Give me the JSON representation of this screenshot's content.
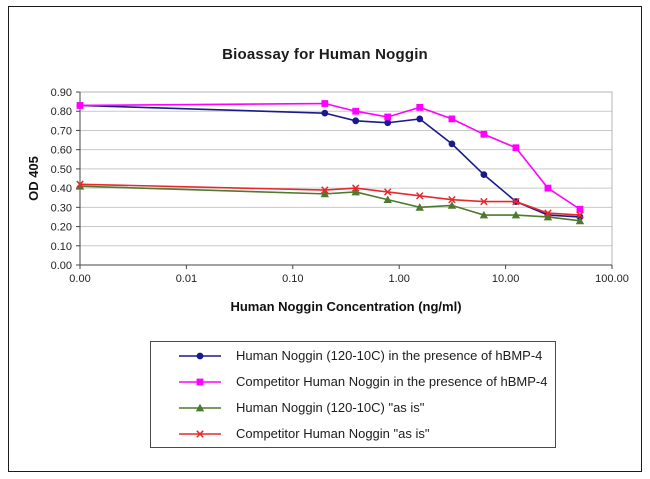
{
  "chart_data": {
    "type": "line",
    "title": "Bioassay for Human Noggin",
    "xlabel": "Human Noggin Concentration (ng/ml)",
    "ylabel": "OD 405",
    "x_scale": "log-with-zero",
    "grid": "horizontal",
    "legend_position": "bottom",
    "ylim": [
      0,
      0.9
    ],
    "y_tick_labels": [
      "0.00",
      "0.10",
      "0.20",
      "0.30",
      "0.40",
      "0.50",
      "0.60",
      "0.70",
      "0.80",
      "0.90"
    ],
    "x_tick_labels": [
      "0.00",
      "0.01",
      "0.10",
      "1.00",
      "10.00",
      "100.00"
    ],
    "x": [
      0,
      0.2,
      0.39,
      0.78,
      1.56,
      3.13,
      6.25,
      12.5,
      25,
      50
    ],
    "series": [
      {
        "name": "Human Noggin (120-10C) in the presence of hBMP-4",
        "color": "#1a1a8c",
        "marker": "circle",
        "values": [
          0.83,
          0.79,
          0.75,
          0.74,
          0.76,
          0.63,
          0.47,
          0.33,
          0.26,
          0.25
        ]
      },
      {
        "name": "Competitor Human Noggin in the presence of hBMP-4",
        "color": "#ff00ff",
        "marker": "square",
        "values": [
          0.83,
          0.84,
          0.8,
          0.77,
          0.82,
          0.76,
          0.68,
          0.61,
          0.4,
          0.29
        ]
      },
      {
        "name": "Human Noggin (120-10C) \"as is\"",
        "color": "#4d7a2e",
        "marker": "triangle",
        "values": [
          0.41,
          0.37,
          0.38,
          0.34,
          0.3,
          0.31,
          0.26,
          0.26,
          0.25,
          0.23
        ]
      },
      {
        "name": "Competitor Human Noggin \"as is\"",
        "color": "#e8282d",
        "marker": "x",
        "values": [
          0.42,
          0.39,
          0.4,
          0.38,
          0.36,
          0.34,
          0.33,
          0.33,
          0.27,
          0.26
        ]
      }
    ]
  }
}
